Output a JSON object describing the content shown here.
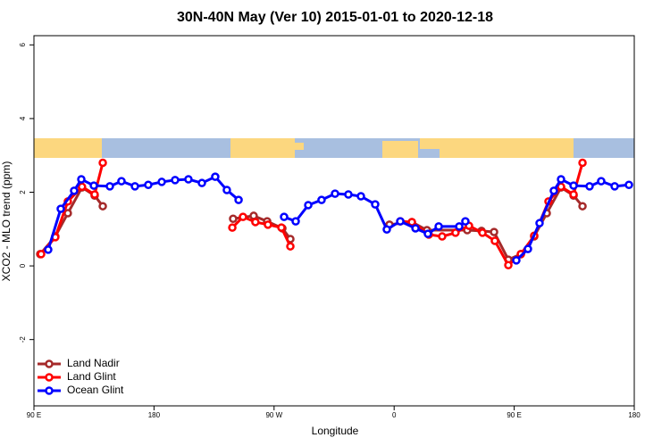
{
  "chart_data": {
    "type": "line",
    "title": "30N-40N May (Ver 10)   2015-01-01 to 2020-12-18",
    "x_label": "Longitude",
    "y_label": "XCO2 - MLO trend (ppm)",
    "xlim": [
      90,
      540
    ],
    "ylim": [
      -3.8,
      6.25
    ],
    "xticks": [
      {
        "value": 90,
        "label": "90 E"
      },
      180,
      {
        "value": 270,
        "label": "90 W"
      },
      {
        "value": 360,
        "label": "0"
      },
      {
        "value": 450,
        "label": "90 E"
      },
      {
        "value": 540,
        "label": "180"
      }
    ],
    "yticks": [
      -2,
      0,
      2,
      4,
      6
    ],
    "legend": "bottom-left",
    "series": [
      {
        "name": "Land Nadir",
        "color": "#a52a2a",
        "x": [
          94.7,
          106,
          115.4,
          126,
          135.5,
          141.6,
          null,
          239.3,
          254.7,
          264.8,
          276.2,
          282.2,
          null,
          356.5,
          373.3,
          384.6,
          414.8,
          425.5,
          434.9,
          445.6,
          455,
          465,
          474.4,
          485.1,
          494.5,
          501.2
        ],
        "values": [
          0.32,
          0.8,
          1.43,
          2.13,
          1.91,
          1.62,
          null,
          1.28,
          1.36,
          1.21,
          1.02,
          0.73,
          null,
          1.12,
          1.19,
          0.97,
          0.97,
          0.95,
          0.92,
          0.17,
          0.32,
          0.8,
          1.43,
          2.13,
          1.91,
          1.62
        ]
      },
      {
        "name": "Land Glint",
        "color": "#ff0000",
        "x": [
          95.4,
          106,
          115.4,
          126,
          135.5,
          141.6,
          null,
          238.7,
          246.7,
          256,
          265.4,
          275.5,
          282.2,
          null,
          364.6,
          373.3,
          386,
          396,
          406,
          416.1,
          426.2,
          435.5,
          445.6,
          455,
          465,
          475.7,
          485.1,
          494.5,
          501.2
        ],
        "values": [
          0.32,
          0.78,
          1.75,
          2.15,
          1.94,
          2.8,
          null,
          1.04,
          1.33,
          1.19,
          1.12,
          1.04,
          0.53,
          null,
          1.21,
          1.19,
          0.85,
          0.8,
          0.9,
          1.09,
          0.9,
          0.68,
          0.02,
          0.32,
          0.82,
          1.75,
          2.15,
          1.94,
          2.8
        ]
      },
      {
        "name": "Ocean Glint",
        "color": "#0000ff",
        "x": [
          100.7,
          110.1,
          120.1,
          125.5,
          134.9,
          146.9,
          155.6,
          165.7,
          175.7,
          185.8,
          195.8,
          205.8,
          215.9,
          225.9,
          234.6,
          243.4,
          null,
          277.5,
          286.2,
          295.6,
          305.6,
          315.7,
          325.7,
          335.1,
          345.8,
          354.5,
          364.6,
          376,
          385.3,
          393.4,
          408.8,
          413.4,
          null,
          451.6,
          460.3,
          469,
          479.7,
          485.1,
          494.5,
          506.5,
          515.2,
          525.3,
          536
        ],
        "values": [
          0.44,
          1.55,
          2.04,
          2.35,
          2.18,
          2.16,
          2.3,
          2.16,
          2.2,
          2.28,
          2.33,
          2.35,
          2.25,
          2.42,
          2.06,
          1.79,
          null,
          1.33,
          1.21,
          1.65,
          1.79,
          1.96,
          1.94,
          1.89,
          1.67,
          0.99,
          1.21,
          1.02,
          0.87,
          1.07,
          1.07,
          1.21,
          null,
          0.15,
          0.46,
          1.16,
          2.04,
          2.35,
          2.18,
          2.16,
          2.3,
          2.16,
          2.2
        ]
      }
    ]
  }
}
